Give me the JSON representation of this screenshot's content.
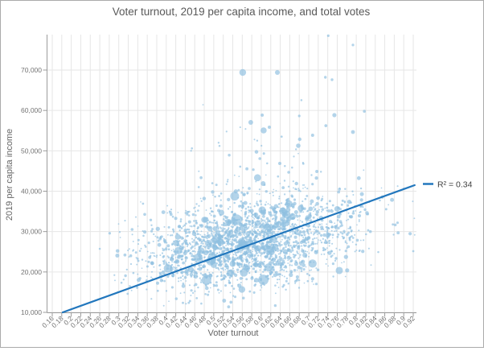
{
  "window": {
    "background": "#ffffff",
    "border_color": "#ababab"
  },
  "chart_data": {
    "type": "scatter",
    "title": "Voter turnout, 2019 per capita income, and total votes",
    "xlabel": "Voter turnout",
    "ylabel": "2019 per capita income",
    "x_ticks": [
      0.16,
      0.18,
      0.2,
      0.22,
      0.24,
      0.26,
      0.28,
      0.3,
      0.32,
      0.34,
      0.36,
      0.38,
      0.4,
      0.42,
      0.44,
      0.46,
      0.48,
      0.5,
      0.52,
      0.54,
      0.56,
      0.58,
      0.6,
      0.62,
      0.64,
      0.66,
      0.68,
      0.7,
      0.72,
      0.74,
      0.76,
      0.78,
      0.8,
      0.82,
      0.84,
      0.86,
      0.88,
      0.9,
      0.92
    ],
    "y_ticks": [
      10000,
      20000,
      30000,
      40000,
      50000,
      60000,
      70000
    ],
    "x_domain": [
      0.15,
      0.928
    ],
    "y_domain": [
      10000,
      78800
    ],
    "grid": true,
    "legend_position": "right-of-plot",
    "colors": {
      "point": "#8fc0e0",
      "point_opacity": 0.68,
      "grid": "#e6e6e6",
      "axis": "#9b9b9b",
      "tick_label": "#737373",
      "title": "#595959",
      "axis_title": "#666666",
      "legend_label": "#404040"
    },
    "trendline": {
      "x1": 0.182,
      "y1": 10000,
      "x2": 0.923,
      "y2": 41500,
      "color": "#2277bd",
      "label": "R² = 0.34"
    },
    "distribution": {
      "comment": "approx. 2400 unlabeled bubbles; cloud summarized statistically, rendered with seeded PRNG",
      "count": 2400,
      "seed": 7,
      "x_mean": 0.578,
      "x_sd": 0.112,
      "x_min": 0.26,
      "x_max": 0.925,
      "center_intercept": 16780,
      "center_slope": 17780,
      "noise_sd": 5300,
      "high_tail_prob": 0.085,
      "high_tail_scale": 7600,
      "y_min": 11000,
      "y_max": 78400,
      "size": {
        "base": 0.8,
        "spread": 0.55,
        "mid_prob": 0.11,
        "mid_add": 1.6,
        "big_prob": 0.022,
        "big_add_min": 1.5,
        "big_add_max": 4.5,
        "big_x_range": [
          0.4,
          0.78
        ],
        "max_r": 7
      }
    },
    "featured_points": [
      {
        "x": 0.561,
        "y": 69400,
        "r": 4.2
      },
      {
        "x": 0.634,
        "y": 69400,
        "r": 3.0
      },
      {
        "x": 0.741,
        "y": 78500,
        "r": 1.6
      },
      {
        "x": 0.793,
        "y": 76200,
        "r": 1.6
      },
      {
        "x": 0.735,
        "y": 68200,
        "r": 1.7
      },
      {
        "x": 0.749,
        "y": 67600,
        "r": 1.7
      },
      {
        "x": 0.817,
        "y": 59800,
        "r": 1.8
      },
      {
        "x": 0.605,
        "y": 55050,
        "r": 3.8
      },
      {
        "x": 0.617,
        "y": 55850,
        "r": 2.0
      },
      {
        "x": 0.681,
        "y": 52860,
        "r": 2.2
      },
      {
        "x": 0.708,
        "y": 53860,
        "r": 2.0
      },
      {
        "x": 0.793,
        "y": 54650,
        "r": 2.4
      },
      {
        "x": 0.678,
        "y": 51270,
        "r": 2.8
      },
      {
        "x": 0.602,
        "y": 58830,
        "r": 2.0
      },
      {
        "x": 0.754,
        "y": 58830,
        "r": 2.6
      },
      {
        "x": 0.68,
        "y": 58630,
        "r": 1.6
      },
      {
        "x": 0.597,
        "y": 48070,
        "r": 1.8
      },
      {
        "x": 0.548,
        "y": 32930,
        "r": 6.8
      },
      {
        "x": 0.563,
        "y": 30940,
        "r": 4.8
      },
      {
        "x": 0.602,
        "y": 35320,
        "r": 4.6
      },
      {
        "x": 0.556,
        "y": 25950,
        "r": 4.8
      },
      {
        "x": 0.483,
        "y": 32930,
        "r": 3.6
      },
      {
        "x": 0.503,
        "y": 30740,
        "r": 3.0
      },
      {
        "x": 0.666,
        "y": 33720,
        "r": 4.0
      },
      {
        "x": 0.48,
        "y": 32930,
        "r": 3.8
      },
      {
        "x": 0.492,
        "y": 30740,
        "r": 3.4
      },
      {
        "x": 0.531,
        "y": 32330,
        "r": 4.0
      },
      {
        "x": 0.604,
        "y": 41890,
        "r": 3.0
      },
      {
        "x": 0.674,
        "y": 41890,
        "r": 2.2
      },
      {
        "x": 0.717,
        "y": 44880,
        "r": 2.0
      },
      {
        "x": 0.639,
        "y": 46880,
        "r": 2.0
      },
      {
        "x": 0.92,
        "y": 25150,
        "r": 1.4
      },
      {
        "x": 0.26,
        "y": 25750,
        "r": 1.3
      },
      {
        "x": 0.302,
        "y": 29900,
        "r": 1.2
      },
      {
        "x": 0.394,
        "y": 34800,
        "r": 2.4
      },
      {
        "x": 0.328,
        "y": 30540,
        "r": 1.8
      },
      {
        "x": 0.427,
        "y": 23760,
        "r": 2.6
      }
    ]
  }
}
